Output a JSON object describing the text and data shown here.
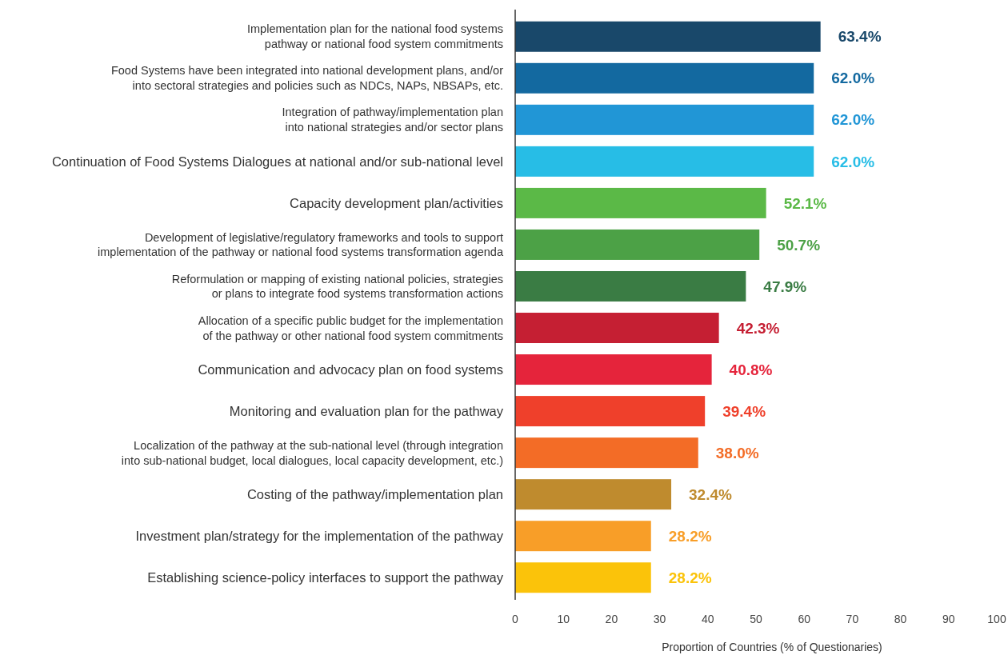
{
  "chart_data": {
    "type": "bar",
    "orientation": "horizontal",
    "xlabel": "Proportion of Countries (% of Questionaries)",
    "categories": [
      "Implementation plan for the national food systems pathway or national food system commitments",
      "Food Systems have been integrated into national development plans, and/or into sectoral strategies and policies such as NDCs, NAPs, NBSAPs, etc.",
      "Integration of pathway/implementation plan into national strategies and/or sector plans",
      "Continuation of Food Systems Dialogues at national and/or sub-national level",
      "Capacity development plan/activities",
      "Development of legislative/regulatory frameworks and tools to support implementation of the pathway or national food systems transformation agenda",
      "Reformulation or mapping of existing national policies, strategies or plans to integrate food systems transformation actions",
      "Allocation of a specific public budget for the implementation of the pathway or other national food system commitments",
      "Communication and advocacy plan on food systems",
      "Monitoring and evaluation plan for the pathway",
      "Localization of the pathway at the sub-national level (through integration into sub-national budget, local dialogues, local capacity development, etc.)",
      "Costing of the pathway/implementation plan",
      "Investment plan/strategy for the implementation of the pathway",
      "Establishing science-policy interfaces to support the pathway"
    ],
    "values": [
      63.4,
      62.0,
      62.0,
      62.0,
      52.1,
      50.7,
      47.9,
      42.3,
      40.8,
      39.4,
      38.0,
      32.4,
      28.2,
      28.2
    ],
    "value_labels": [
      "63.4%",
      "62.0%",
      "62.0%",
      "62.0%",
      "52.1%",
      "50.7%",
      "47.9%",
      "42.3%",
      "40.8%",
      "39.4%",
      "38.0%",
      "32.4%",
      "28.2%",
      "28.2%"
    ],
    "colors": [
      "#19486a",
      "#1369a0",
      "#2196d6",
      "#27bde6",
      "#5bb947",
      "#4ca146",
      "#3a7c44",
      "#c51f33",
      "#e5243b",
      "#ef402b",
      "#f36c26",
      "#bf8b2e",
      "#f89e28",
      "#fbc30a"
    ],
    "xlim": [
      0,
      100
    ],
    "xticks": [
      0,
      10,
      20,
      30,
      40,
      50,
      60,
      70,
      80,
      90,
      100
    ],
    "grid": false
  }
}
